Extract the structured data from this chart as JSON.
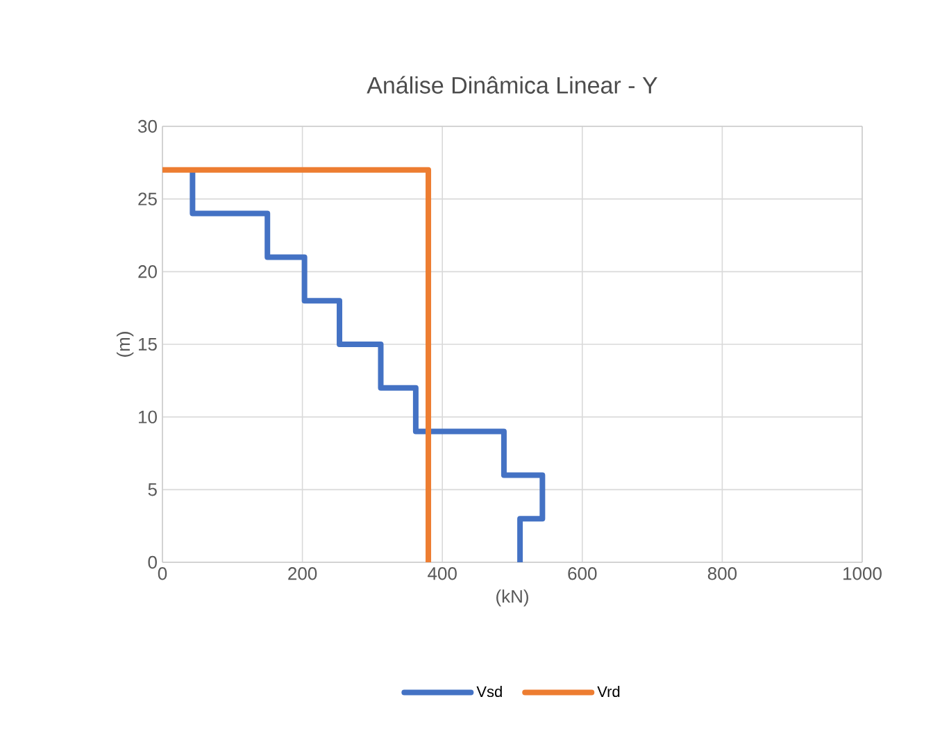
{
  "chart_data": {
    "type": "line",
    "title": "Análise Dinâmica Linear  - Y",
    "xlabel": "(kN)",
    "ylabel": "(m)",
    "xlim": [
      0,
      1000
    ],
    "xticks": [
      0,
      200,
      400,
      600,
      800,
      1000
    ],
    "ylim": [
      0,
      30
    ],
    "yticks": [
      0,
      5,
      10,
      15,
      20,
      25,
      30
    ],
    "grid": true,
    "legend": "bottom",
    "marker": "none",
    "line_style": "solid",
    "series": [
      {
        "name": "Vsd",
        "color": "#4472c4",
        "x": [
          511,
          511,
          543,
          543,
          488,
          488,
          362,
          362,
          312,
          312,
          253,
          253,
          203,
          203,
          150,
          150,
          43,
          43
        ],
        "values": [
          0,
          3,
          3,
          6,
          6,
          9,
          9,
          12,
          12,
          15,
          15,
          18,
          18,
          21,
          21,
          24,
          24,
          27
        ]
      },
      {
        "name": "Vrd",
        "color": "#ed7d31",
        "x": [
          380,
          380,
          0
        ],
        "values": [
          0,
          27,
          27
        ]
      }
    ]
  }
}
